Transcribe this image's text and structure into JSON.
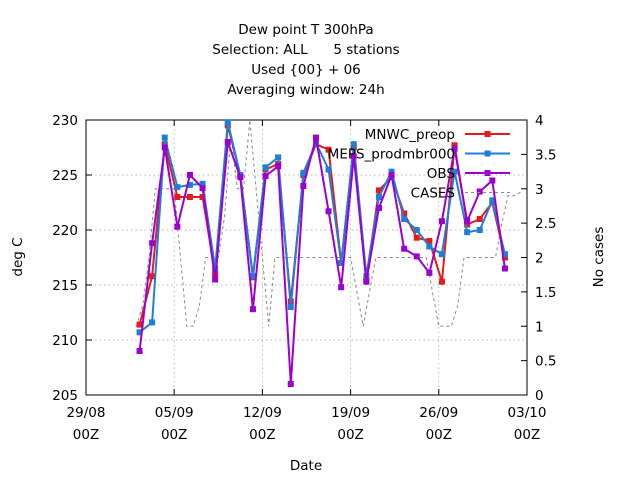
{
  "chart_data": {
    "type": "line",
    "title_lines": [
      "Dew point T 300hPa",
      "Selection: ALL      5 stations",
      "Used {00} + 06",
      "Averaging window: 24h"
    ],
    "xlabel": "Date",
    "ylabel": "deg C",
    "y2label": "No cases",
    "x_unit": "date",
    "xlim": [
      "2020-08-29",
      "2020-10-03"
    ],
    "ylim": [
      205,
      230
    ],
    "y2lim": [
      0,
      4
    ],
    "x_ticks": [
      {
        "date": "2020-08-29",
        "line1": "29/08",
        "line2": "00Z"
      },
      {
        "date": "2020-09-05",
        "line1": "05/09",
        "line2": "00Z"
      },
      {
        "date": "2020-09-12",
        "line1": "12/09",
        "line2": "00Z"
      },
      {
        "date": "2020-09-19",
        "line1": "19/09",
        "line2": "00Z"
      },
      {
        "date": "2020-09-26",
        "line1": "26/09",
        "line2": "00Z"
      },
      {
        "date": "2020-10-03",
        "line1": "03/10",
        "line2": "00Z"
      }
    ],
    "y_ticks": [
      205,
      210,
      215,
      220,
      225,
      230
    ],
    "y2_ticks": [
      "0",
      "0.5",
      "1",
      "1.5",
      "2",
      "2.5",
      "3",
      "3.5",
      "4"
    ],
    "grid": true,
    "legend_position": "top-right",
    "series": [
      {
        "name": "MNWC_preop",
        "color": "#e41a1c",
        "axis": "y",
        "marker": "square",
        "points": [
          [
            "2020-09-02 06:00",
            211.4
          ],
          [
            "2020-09-03 06:00",
            215.8
          ],
          [
            "2020-09-04 06:00",
            227.8
          ],
          [
            "2020-09-05 06:00",
            223.0
          ],
          [
            "2020-09-06 06:00",
            223.0
          ],
          [
            "2020-09-07 06:00",
            223.0
          ],
          [
            "2020-09-08 06:00",
            216.0
          ],
          [
            "2020-09-09 06:00",
            229.5
          ],
          [
            "2020-09-10 06:00",
            225.0
          ],
          [
            "2020-09-11 06:00",
            215.7
          ],
          [
            "2020-09-12 06:00",
            225.5
          ],
          [
            "2020-09-13 06:00",
            226.0
          ],
          [
            "2020-09-14 06:00",
            213.5
          ],
          [
            "2020-09-15 06:00",
            225.0
          ],
          [
            "2020-09-16 06:00",
            227.8
          ],
          [
            "2020-09-17 06:00",
            227.3
          ],
          [
            "2020-09-18 06:00",
            217.0
          ],
          [
            "2020-09-19 06:00",
            227.5
          ],
          [
            "2020-09-20 06:00",
            215.5
          ],
          [
            "2020-09-21 06:00",
            223.6
          ],
          [
            "2020-09-22 06:00",
            224.8
          ],
          [
            "2020-09-23 06:00",
            221.5
          ],
          [
            "2020-09-24 06:00",
            219.3
          ],
          [
            "2020-09-25 06:00",
            219.0
          ],
          [
            "2020-09-26 06:00",
            215.3
          ],
          [
            "2020-09-27 06:00",
            227.7
          ],
          [
            "2020-09-28 06:00",
            220.5
          ],
          [
            "2020-09-29 06:00",
            221.0
          ],
          [
            "2020-09-30 06:00",
            222.5
          ],
          [
            "2020-10-01 06:00",
            217.5
          ]
        ]
      },
      {
        "name": "MEPS_prodmbr000",
        "color": "#1e7fd8",
        "axis": "y",
        "marker": "square",
        "points": [
          [
            "2020-09-02 06:00",
            210.7
          ],
          [
            "2020-09-03 06:00",
            211.6
          ],
          [
            "2020-09-04 06:00",
            228.4
          ],
          [
            "2020-09-05 06:00",
            223.9
          ],
          [
            "2020-09-06 06:00",
            224.1
          ],
          [
            "2020-09-07 06:00",
            224.2
          ],
          [
            "2020-09-08 06:00",
            216.5
          ],
          [
            "2020-09-09 06:00",
            229.8
          ],
          [
            "2020-09-10 06:00",
            225.0
          ],
          [
            "2020-09-11 06:00",
            215.8
          ],
          [
            "2020-09-12 06:00",
            225.7
          ],
          [
            "2020-09-13 06:00",
            226.6
          ],
          [
            "2020-09-14 06:00",
            213.0
          ],
          [
            "2020-09-15 06:00",
            225.2
          ],
          [
            "2020-09-16 06:00",
            227.9
          ],
          [
            "2020-09-17 06:00",
            225.5
          ],
          [
            "2020-09-18 06:00",
            217.0
          ],
          [
            "2020-09-19 06:00",
            227.8
          ],
          [
            "2020-09-20 06:00",
            215.8
          ],
          [
            "2020-09-21 06:00",
            223.0
          ],
          [
            "2020-09-22 06:00",
            225.3
          ],
          [
            "2020-09-23 06:00",
            221.0
          ],
          [
            "2020-09-24 06:00",
            220.0
          ],
          [
            "2020-09-25 06:00",
            218.5
          ],
          [
            "2020-09-26 06:00",
            217.8
          ],
          [
            "2020-09-27 06:00",
            225.3
          ],
          [
            "2020-09-28 06:00",
            219.8
          ],
          [
            "2020-09-29 06:00",
            220.0
          ],
          [
            "2020-09-30 06:00",
            222.7
          ],
          [
            "2020-10-01 06:00",
            217.8
          ]
        ]
      },
      {
        "name": "OBS",
        "color": "#9b00d3",
        "axis": "y",
        "marker": "square",
        "points": [
          [
            "2020-09-02 06:00",
            209.0
          ],
          [
            "2020-09-03 06:00",
            218.8
          ],
          [
            "2020-09-04 06:00",
            227.5
          ],
          [
            "2020-09-05 06:00",
            220.3
          ],
          [
            "2020-09-06 06:00",
            225.0
          ],
          [
            "2020-09-07 06:00",
            223.8
          ],
          [
            "2020-09-08 06:00",
            215.5
          ],
          [
            "2020-09-09 06:00",
            228.0
          ],
          [
            "2020-09-10 06:00",
            224.8
          ],
          [
            "2020-09-11 06:00",
            212.8
          ],
          [
            "2020-09-12 06:00",
            224.9
          ],
          [
            "2020-09-13 06:00",
            225.8
          ],
          [
            "2020-09-14 06:00",
            206.0
          ],
          [
            "2020-09-15 06:00",
            224.0
          ],
          [
            "2020-09-16 06:00",
            228.4
          ],
          [
            "2020-09-17 06:00",
            221.7
          ],
          [
            "2020-09-18 06:00",
            214.8
          ],
          [
            "2020-09-19 06:00",
            226.7
          ],
          [
            "2020-09-20 06:00",
            215.3
          ],
          [
            "2020-09-21 06:00",
            222.0
          ],
          [
            "2020-09-22 06:00",
            225.0
          ],
          [
            "2020-09-23 06:00",
            218.3
          ],
          [
            "2020-09-24 06:00",
            217.6
          ],
          [
            "2020-09-25 06:00",
            216.1
          ],
          [
            "2020-09-26 06:00",
            220.8
          ],
          [
            "2020-09-27 06:00",
            227.4
          ],
          [
            "2020-09-28 06:00",
            220.8
          ],
          [
            "2020-09-29 06:00",
            223.5
          ],
          [
            "2020-09-30 06:00",
            224.5
          ],
          [
            "2020-10-01 06:00",
            216.5
          ]
        ]
      },
      {
        "name": "CASES",
        "color": "#888888",
        "axis": "y2",
        "style": "dashed",
        "points": [
          [
            "2020-09-02 00:00",
            1.0
          ],
          [
            "2020-09-02 12:00",
            1.3
          ],
          [
            "2020-09-03 00:00",
            2.0
          ],
          [
            "2020-09-03 12:00",
            3.0
          ],
          [
            "2020-09-04 00:00",
            3.0
          ],
          [
            "2020-09-04 12:00",
            3.0
          ],
          [
            "2020-09-05 00:00",
            3.0
          ],
          [
            "2020-09-05 12:00",
            2.0
          ],
          [
            "2020-09-06 00:00",
            1.0
          ],
          [
            "2020-09-06 12:00",
            1.0
          ],
          [
            "2020-09-07 00:00",
            1.3
          ],
          [
            "2020-09-07 12:00",
            2.0
          ],
          [
            "2020-09-08 00:00",
            2.0
          ],
          [
            "2020-09-08 12:00",
            2.0
          ],
          [
            "2020-09-09 00:00",
            2.6
          ],
          [
            "2020-09-09 12:00",
            3.8
          ],
          [
            "2020-09-10 00:00",
            3.0
          ],
          [
            "2020-09-10 12:00",
            3.0
          ],
          [
            "2020-09-11 00:00",
            4.0
          ],
          [
            "2020-09-11 12:00",
            3.0
          ],
          [
            "2020-09-12 00:00",
            2.0
          ],
          [
            "2020-09-12 12:00",
            1.0
          ],
          [
            "2020-09-13 00:00",
            2.0
          ],
          [
            "2020-09-13 12:00",
            2.0
          ],
          [
            "2020-09-14 00:00",
            2.0
          ],
          [
            "2020-09-14 12:00",
            2.0
          ],
          [
            "2020-09-15 00:00",
            2.0
          ],
          [
            "2020-09-15 12:00",
            2.0
          ],
          [
            "2020-09-16 00:00",
            2.0
          ],
          [
            "2020-09-16 12:00",
            2.0
          ],
          [
            "2020-09-17 00:00",
            2.0
          ],
          [
            "2020-09-17 12:00",
            2.0
          ],
          [
            "2020-09-18 00:00",
            2.0
          ],
          [
            "2020-09-18 12:00",
            2.0
          ],
          [
            "2020-09-19 00:00",
            2.0
          ],
          [
            "2020-09-19 12:00",
            1.5
          ],
          [
            "2020-09-20 00:00",
            1.0
          ],
          [
            "2020-09-20 12:00",
            1.5
          ],
          [
            "2020-09-21 00:00",
            2.0
          ],
          [
            "2020-09-21 12:00",
            2.0
          ],
          [
            "2020-09-22 00:00",
            2.0
          ],
          [
            "2020-09-22 12:00",
            2.0
          ],
          [
            "2020-09-23 00:00",
            2.0
          ],
          [
            "2020-09-23 12:00",
            2.0
          ],
          [
            "2020-09-24 00:00",
            2.0
          ],
          [
            "2020-09-24 12:00",
            2.0
          ],
          [
            "2020-09-25 00:00",
            2.0
          ],
          [
            "2020-09-25 12:00",
            1.5
          ],
          [
            "2020-09-26 00:00",
            1.0
          ],
          [
            "2020-09-26 12:00",
            1.0
          ],
          [
            "2020-09-27 00:00",
            1.0
          ],
          [
            "2020-09-27 12:00",
            1.3
          ],
          [
            "2020-09-28 00:00",
            2.0
          ],
          [
            "2020-09-28 12:00",
            2.0
          ],
          [
            "2020-09-29 00:00",
            2.0
          ],
          [
            "2020-09-29 12:00",
            2.0
          ],
          [
            "2020-09-30 00:00",
            2.0
          ],
          [
            "2020-09-30 12:00",
            2.0
          ],
          [
            "2020-10-01 00:00",
            2.5
          ],
          [
            "2020-10-01 12:00",
            2.9
          ],
          [
            "2020-10-02 00:00",
            2.9
          ],
          [
            "2020-10-02 12:00",
            2.95
          ]
        ]
      }
    ]
  }
}
